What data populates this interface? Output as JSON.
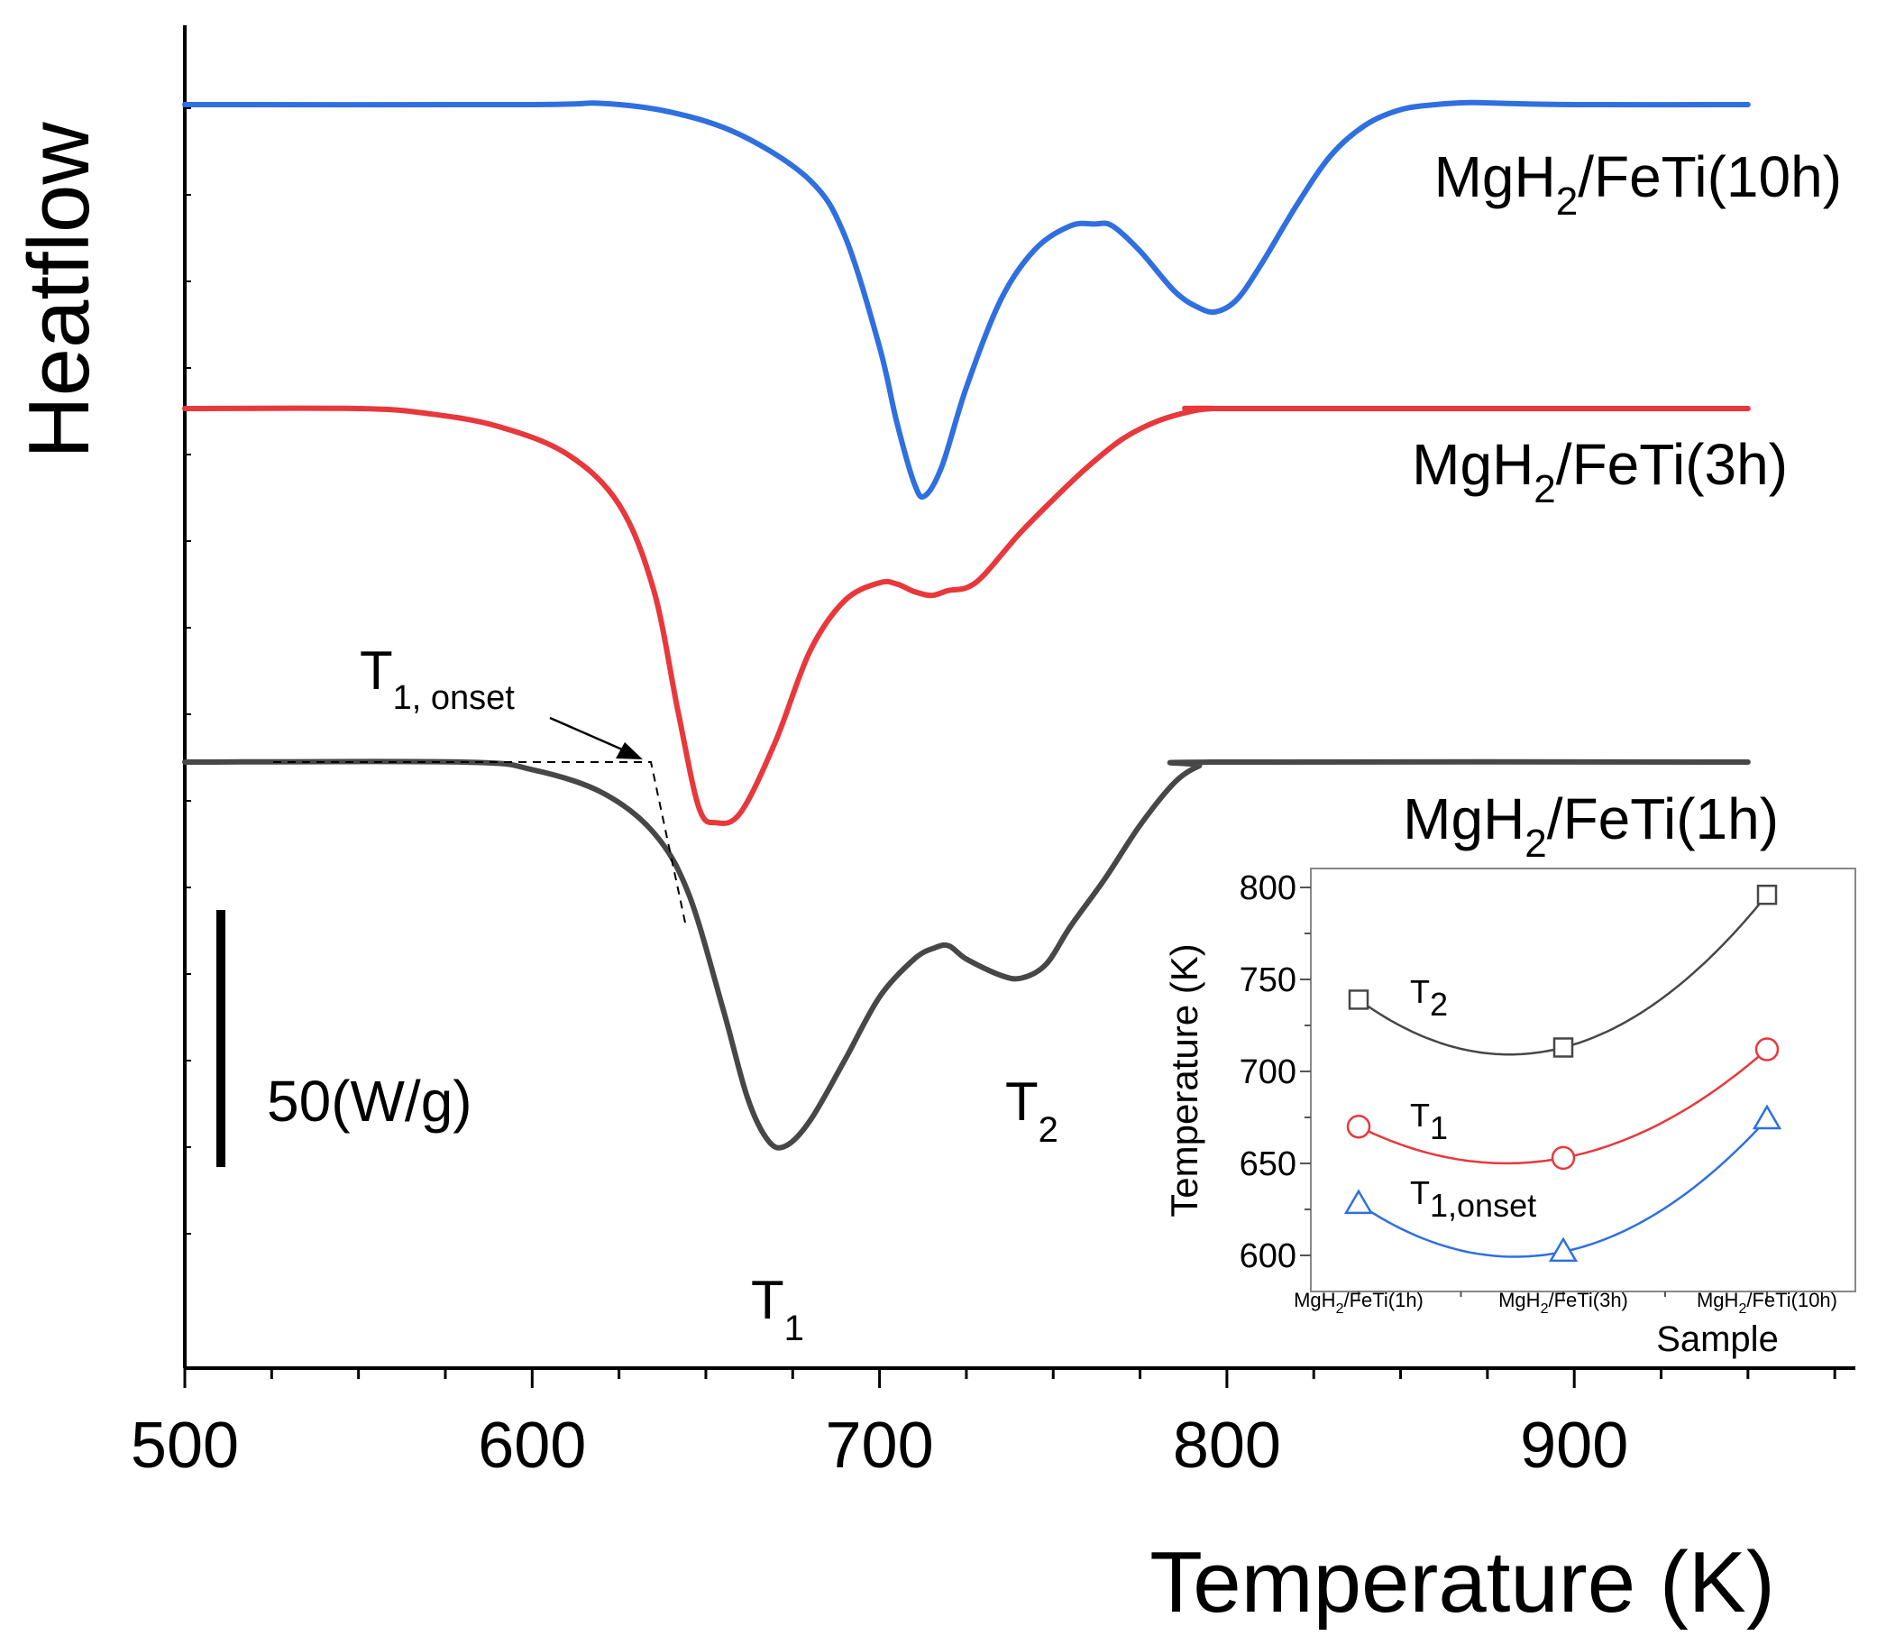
{
  "chart_data": [
    {
      "type": "line",
      "title": "",
      "xlabel": "Temperature (K)",
      "ylabel": "Heatflow",
      "xlim": [
        500,
        980
      ],
      "x_ticks": [
        500,
        600,
        700,
        800,
        900
      ],
      "scale_bar_label": "50(W/g)",
      "scale_bar_value_w_per_g": 50,
      "series": [
        {
          "name": "MgH2/FeTi(10h)",
          "label_main": "MgH",
          "label_sub": "2",
          "label_rest": "/FeTi(10h)",
          "color": "#2f6fe0",
          "x": [
            500,
            600,
            620,
            640,
            660,
            680,
            690,
            700,
            705,
            710,
            713,
            718,
            725,
            735,
            745,
            755,
            762,
            767,
            775,
            785,
            792,
            797,
            803,
            810,
            820,
            830,
            840,
            850,
            860,
            870,
            880,
            900,
            950
          ],
          "y": [
            0,
            0,
            0.5,
            -3,
            -12,
            -30,
            -52,
            -96,
            -126,
            -150,
            -155,
            -143,
            -112,
            -77,
            -57,
            -48,
            -47.3,
            -48,
            -58,
            -74,
            -80.5,
            -82,
            -77,
            -63,
            -40,
            -20,
            -8,
            -2,
            0,
            0.8,
            0.5,
            0,
            0
          ]
        },
        {
          "name": "MgH2/FeTi(3h)",
          "label_main": "MgH",
          "label_sub": "2",
          "label_rest": "/FeTi(3h)",
          "color": "#e8383b",
          "x": [
            500,
            550,
            570,
            590,
            610,
            625,
            635,
            642,
            648,
            653,
            660,
            670,
            680,
            690,
            700,
            705,
            710,
            715,
            720,
            725,
            730,
            740,
            750,
            760,
            770,
            780,
            790,
            796,
            800,
            950
          ],
          "y": [
            0,
            0,
            -2,
            -7,
            -18,
            -38,
            -72,
            -120,
            -158,
            -164,
            -160,
            -132,
            -96,
            -76,
            -69,
            -69.5,
            -72.5,
            -74,
            -72,
            -71,
            -66,
            -50,
            -36,
            -23,
            -12,
            -5,
            -1,
            0,
            0,
            0
          ]
        },
        {
          "name": "MgH2/FeTi(1h)",
          "label_main": "MgH",
          "label_sub": "2",
          "label_rest": "/FeTi(1h)",
          "color": "#474747",
          "x": [
            500,
            580,
            600,
            620,
            635,
            645,
            655,
            662,
            668,
            673,
            680,
            690,
            700,
            710,
            716,
            720,
            725,
            735,
            741,
            748,
            755,
            765,
            775,
            785,
            792,
            796,
            950
          ],
          "y": [
            0,
            0,
            -3,
            -12,
            -28,
            -52,
            -98,
            -133,
            -150,
            -152,
            -142,
            -118,
            -93,
            -78,
            -73.5,
            -72.8,
            -78,
            -84.5,
            -85.5,
            -80,
            -65,
            -46,
            -25,
            -8,
            -1.5,
            0,
            0
          ]
        }
      ],
      "annotations": {
        "T1": {
          "main": "T",
          "sub": "1",
          "x": 670
        },
        "T2": {
          "main": "T",
          "sub": "2",
          "x": 742
        },
        "T1_onset": {
          "main": "T",
          "sub": "1, onset",
          "x": 634
        }
      }
    },
    {
      "type": "line",
      "title": "",
      "xlabel": "Sample",
      "ylabel": "Temperature (K)",
      "ylim": [
        580,
        810
      ],
      "y_ticks": [
        600,
        650,
        700,
        750,
        800
      ],
      "categories": [
        {
          "main": "MgH",
          "sub": "2",
          "rest": "/FeTi(1h)"
        },
        {
          "main": "MgH",
          "sub": "2",
          "rest": "/FeTi(3h)"
        },
        {
          "main": "MgH",
          "sub": "2",
          "rest": "/FeTi(10h)"
        }
      ],
      "series": [
        {
          "name": "T2",
          "label_main": "T",
          "label_sub": "2",
          "marker": "square",
          "color": "#474747",
          "values": [
            739,
            713,
            796
          ]
        },
        {
          "name": "T1",
          "label_main": "T",
          "label_sub": "1",
          "marker": "circle",
          "color": "#e8383b",
          "values": [
            670,
            653,
            712
          ]
        },
        {
          "name": "T1,onset",
          "label_main": "T",
          "label_sub": "1,onset",
          "marker": "triangle",
          "color": "#2f6fe0",
          "values": [
            628,
            602,
            674
          ]
        }
      ]
    }
  ]
}
